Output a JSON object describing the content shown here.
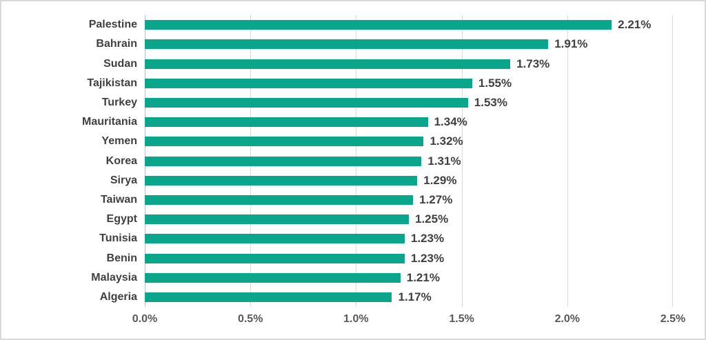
{
  "chart_data": {
    "type": "bar",
    "orientation": "horizontal",
    "title": "",
    "categories": [
      "Palestine",
      "Bahrain",
      "Sudan",
      "Tajikistan",
      "Turkey",
      "Mauritania",
      "Yemen",
      "Korea",
      "Sirya",
      "Taiwan",
      "Egypt",
      "Tunisia",
      "Benin",
      "Malaysia",
      "Algeria"
    ],
    "values": [
      2.21,
      1.91,
      1.73,
      1.55,
      1.53,
      1.34,
      1.32,
      1.31,
      1.29,
      1.27,
      1.25,
      1.23,
      1.23,
      1.21,
      1.17
    ],
    "value_labels": [
      "2.21%",
      "1.91%",
      "1.73%",
      "1.55%",
      "1.53%",
      "1.34%",
      "1.32%",
      "1.31%",
      "1.29%",
      "1.27%",
      "1.25%",
      "1.23%",
      "1.23%",
      "1.21%",
      "1.17%"
    ],
    "x_ticks": [
      "0.0%",
      "0.5%",
      "1.0%",
      "1.5%",
      "2.0%",
      "2.5%"
    ],
    "xlim": [
      0,
      2.5
    ],
    "grid": "vertical-gridlines-on",
    "legend": "none",
    "colors": {
      "bar": "#0aa68c",
      "label_text": "#404040",
      "tick_text": "#595959",
      "gridline": "#d9d9d9",
      "axis_line": "#bfbfbf",
      "frame_border": "#d9d9d9",
      "background": "#ffffff"
    }
  }
}
